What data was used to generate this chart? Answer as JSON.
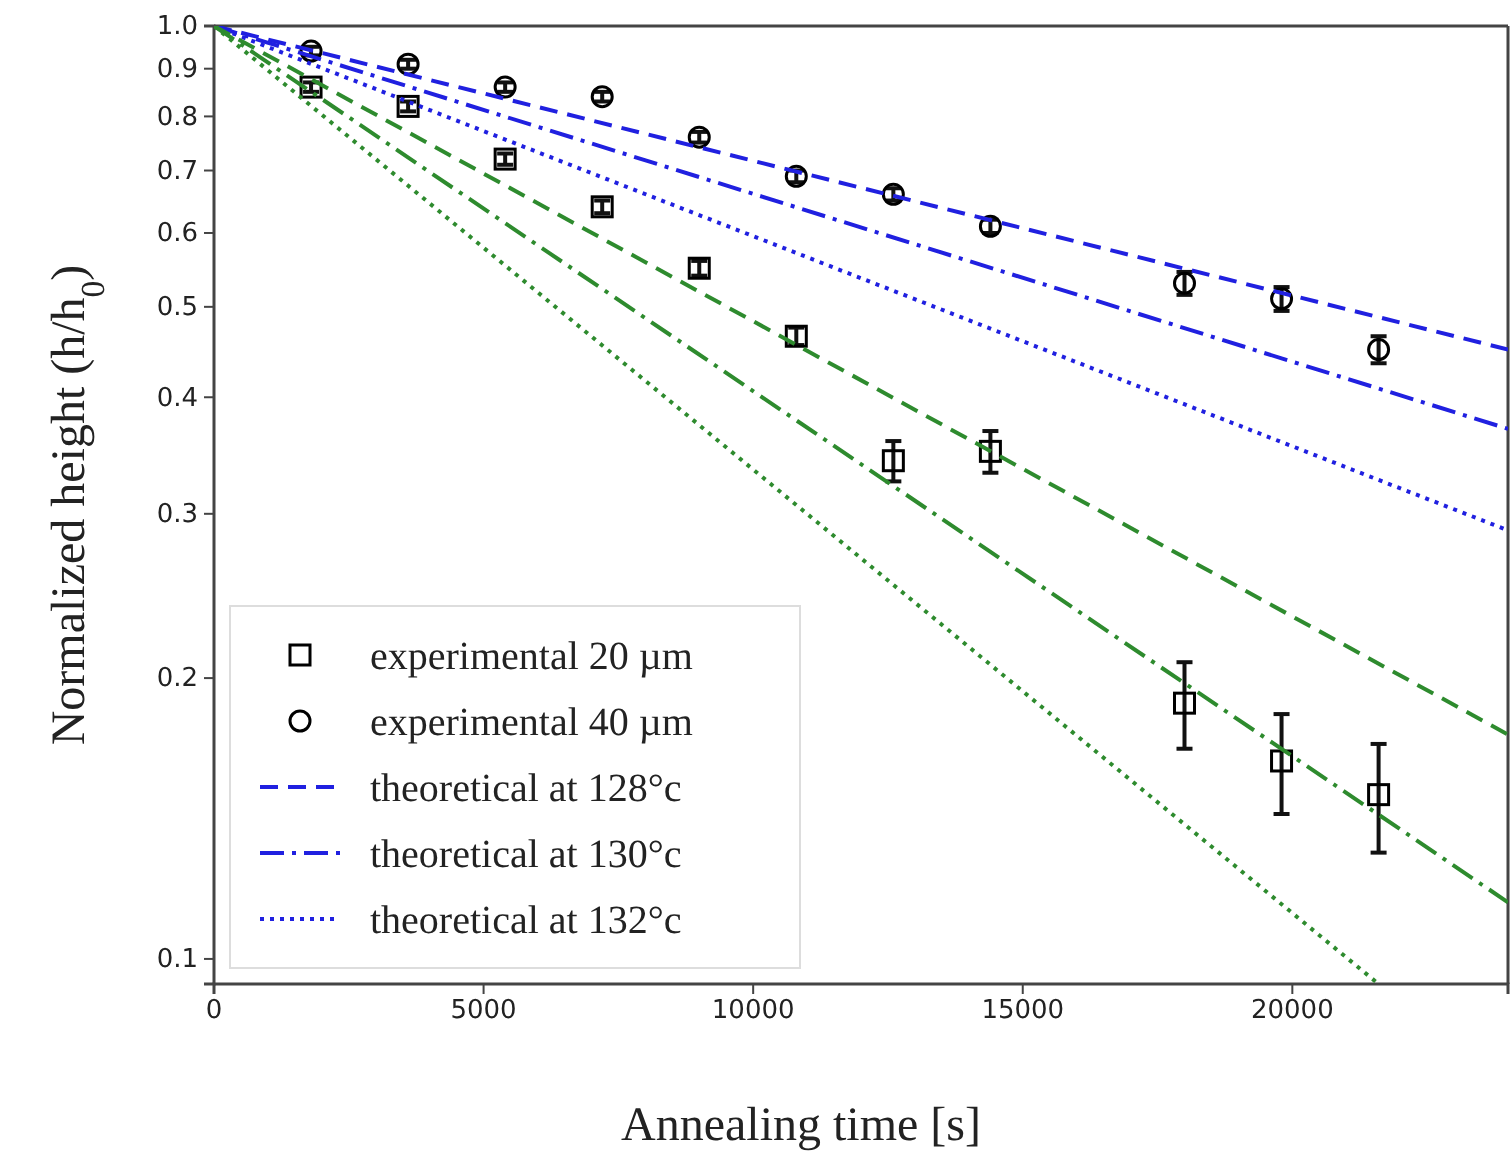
{
  "chart_data": {
    "type": "scatter",
    "xlabel": "Annealing time [s]",
    "ylabel": "Normalized height (h/h$_{0}$)",
    "xlim": [
      0,
      24000
    ],
    "xticks": [
      0,
      5000,
      10000,
      15000,
      20000
    ],
    "ylim": [
      0.094,
      1.0
    ],
    "yticks": [
      0.1,
      0.2,
      0.3,
      0.4,
      0.5,
      0.6,
      0.7,
      0.8,
      0.9,
      {
        "value": 1,
        "label": "1.0"
      }
    ],
    "log": "y",
    "grid": false,
    "legend": "bottom left",
    "series": [
      {
        "name": "experimental 20 µm",
        "marker": "square",
        "color": "#000000",
        "x": [
          1800,
          3600,
          5400,
          7200,
          9000,
          10800,
          12600,
          14400,
          18000,
          19800,
          21600
        ],
        "values": [
          0.86,
          0.82,
          0.72,
          0.64,
          0.55,
          0.465,
          0.342,
          0.35,
          0.188,
          0.163,
          0.15
        ],
        "errors": [
          0.01,
          0.01,
          0.01,
          0.01,
          0.01,
          0.01,
          0.017,
          0.018,
          0.02,
          0.02,
          0.02
        ]
      },
      {
        "name": "experimental 40 µm",
        "marker": "circle",
        "color": "#000000",
        "x": [
          1800,
          3600,
          5400,
          7200,
          9000,
          10800,
          12600,
          14400,
          18000,
          19800,
          21600
        ],
        "values": [
          0.94,
          0.91,
          0.86,
          0.84,
          0.76,
          0.69,
          0.66,
          0.61,
          0.53,
          0.51,
          0.45
        ],
        "errors": [
          0.01,
          0.01,
          0.01,
          0.01,
          0.01,
          0.01,
          0.01,
          0.01,
          0.015,
          0.015,
          0.015
        ]
      },
      {
        "name": "theoretical at 128°c",
        "type": "line",
        "marker": "none",
        "line_style": "dashed",
        "color": "#2020e0",
        "x": [
          0,
          24000
        ],
        "values": [
          1.0,
          0.45
        ]
      },
      {
        "name": "theoretical at 130°c",
        "type": "line",
        "marker": "none",
        "line_style": "dashdot",
        "color": "#2020e0",
        "x": [
          0,
          24000
        ],
        "values": [
          1.0,
          0.37
        ]
      },
      {
        "name": "theoretical at 132°c",
        "type": "line",
        "marker": "none",
        "line_style": "dotted",
        "color": "#2020e0",
        "x": [
          0,
          24000
        ],
        "values": [
          1.0,
          0.288
        ]
      },
      {
        "type": "line",
        "marker": "none",
        "line_style": "dashed",
        "color": "#2e8b2e",
        "x": [
          0,
          24000
        ],
        "values": [
          1.0,
          0.174
        ]
      },
      {
        "type": "line",
        "marker": "none",
        "line_style": "dashdot",
        "color": "#2e8b2e",
        "x": [
          0,
          24000
        ],
        "values": [
          1.0,
          0.115
        ]
      },
      {
        "type": "line",
        "marker": "none",
        "line_style": "dotted",
        "color": "#2e8b2e",
        "x": [
          0,
          21600
        ],
        "values": [
          1.0,
          0.094
        ]
      }
    ]
  }
}
